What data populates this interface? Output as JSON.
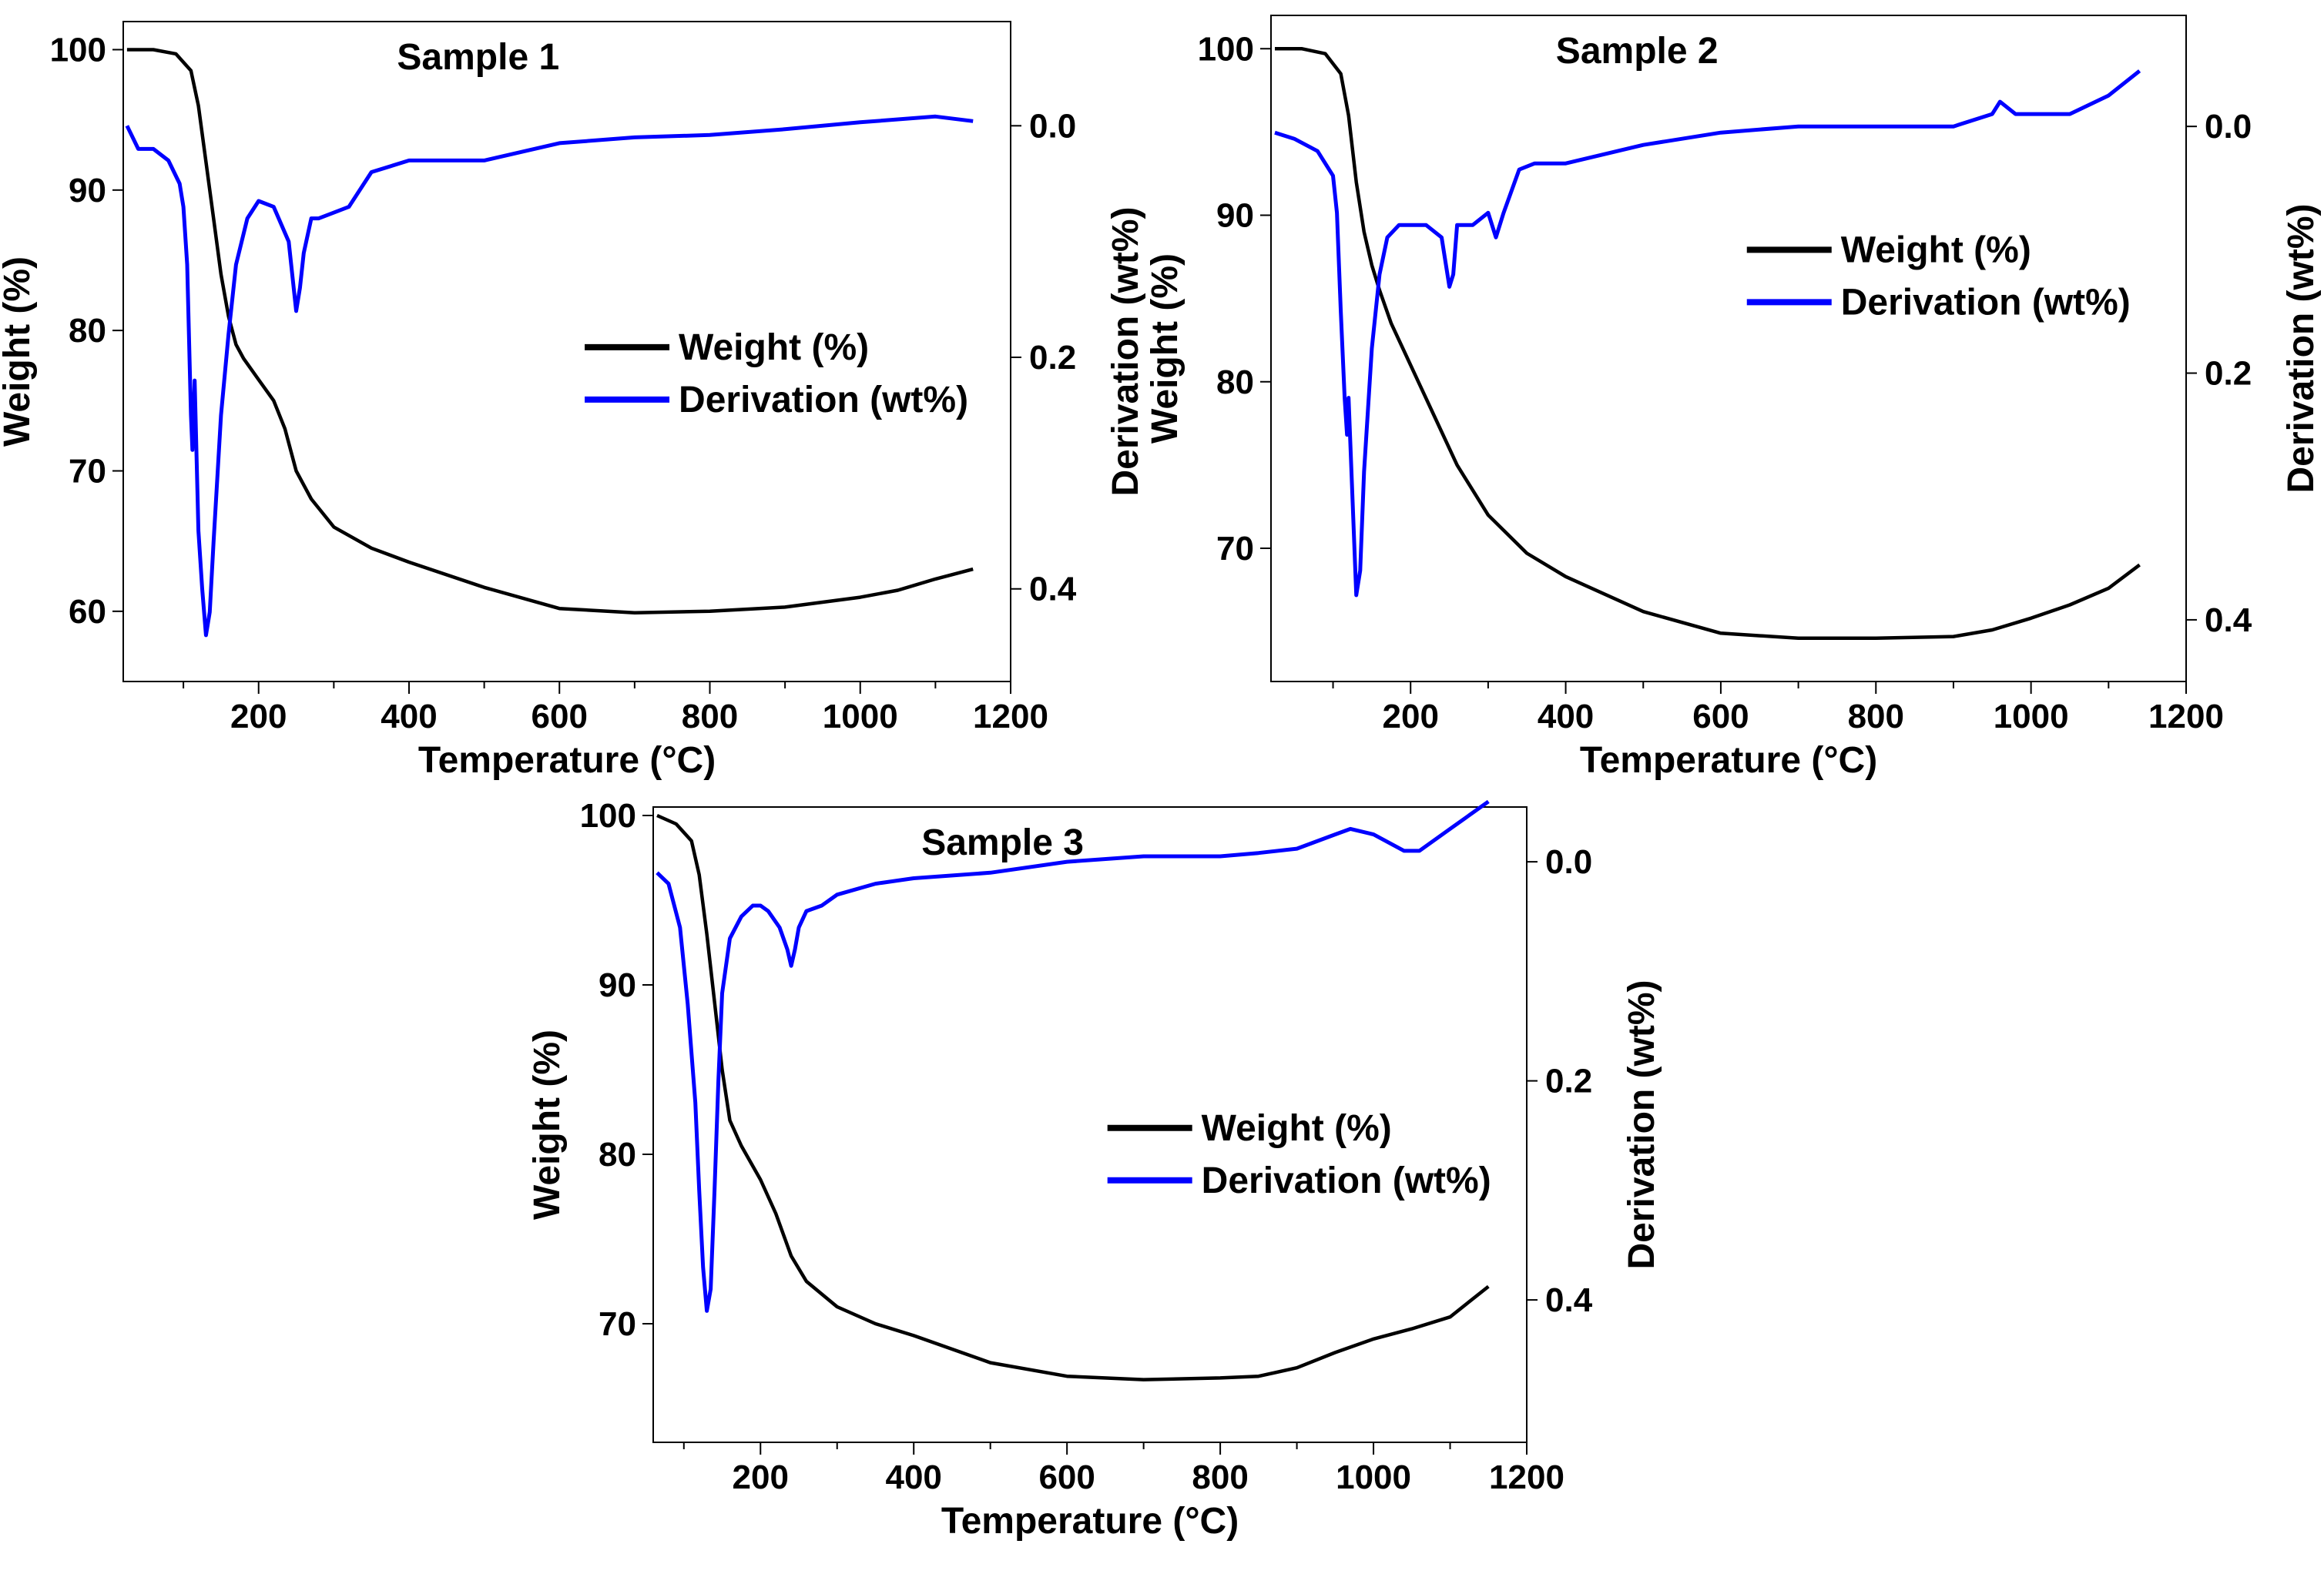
{
  "figure": {
    "panel_count": 3
  },
  "colors": {
    "weight": "#000000",
    "derivation": "#0000ff",
    "axis": "#000000",
    "background": "#ffffff"
  },
  "chart_data": [
    {
      "type": "line",
      "title": "Sample 1",
      "xlabel": "Temperature (°C)",
      "ylabel": "Weight (%)",
      "y2label": "Derivation (wt%)",
      "xlim": [
        20,
        1200
      ],
      "ylim": [
        55,
        102
      ],
      "y2lim": [
        0.48,
        -0.09
      ],
      "xticks": [
        200,
        400,
        600,
        800,
        1000,
        1200
      ],
      "yticks": [
        60,
        70,
        80,
        90,
        100
      ],
      "y2ticks": [
        0.0,
        0.2,
        0.4
      ],
      "legend": {
        "position": "middle-right",
        "entries": [
          "Weight (%)",
          "Derivation (wt%)"
        ]
      },
      "series": [
        {
          "name": "Weight (%)",
          "axis": "left",
          "color": "#000000",
          "x": [
            25,
            60,
            90,
            110,
            120,
            130,
            140,
            150,
            160,
            170,
            180,
            200,
            220,
            235,
            250,
            270,
            300,
            350,
            400,
            500,
            600,
            700,
            800,
            900,
            1000,
            1050,
            1100,
            1150
          ],
          "y": [
            100,
            100,
            99.7,
            98.5,
            96,
            92,
            88,
            84,
            81,
            79,
            78,
            76.5,
            75,
            73,
            70,
            68,
            66,
            64.5,
            63.5,
            61.7,
            60.2,
            59.9,
            60.0,
            60.3,
            61.0,
            61.5,
            62.3,
            63.0
          ]
        },
        {
          "name": "Derivation (wt%)",
          "axis": "right",
          "color": "#0000ff",
          "x": [
            25,
            40,
            60,
            80,
            95,
            100,
            105,
            110,
            112,
            115,
            120,
            125,
            130,
            135,
            140,
            150,
            160,
            170,
            185,
            200,
            220,
            240,
            250,
            255,
            260,
            270,
            280,
            300,
            320,
            350,
            400,
            450,
            500,
            600,
            700,
            800,
            900,
            1000,
            1100,
            1150
          ],
          "y": [
            0.0,
            0.02,
            0.02,
            0.03,
            0.05,
            0.07,
            0.12,
            0.25,
            0.28,
            0.22,
            0.35,
            0.4,
            0.44,
            0.42,
            0.36,
            0.25,
            0.18,
            0.12,
            0.08,
            0.065,
            0.07,
            0.1,
            0.16,
            0.14,
            0.11,
            0.08,
            0.08,
            0.075,
            0.07,
            0.04,
            0.03,
            0.03,
            0.03,
            0.015,
            0.01,
            0.008,
            0.003,
            -0.003,
            -0.008,
            -0.004
          ]
        }
      ]
    },
    {
      "type": "line",
      "title": "Sample 2",
      "xlabel": "Temperature (°C)",
      "ylabel": "Weight (%)",
      "y2label": "Derivation (wt%)",
      "xlim": [
        20,
        1200
      ],
      "ylim": [
        62,
        102
      ],
      "y2lim": [
        0.45,
        -0.09
      ],
      "xticks": [
        200,
        400,
        600,
        800,
        1000,
        1200
      ],
      "yticks": [
        70,
        80,
        90,
        100
      ],
      "y2ticks": [
        0.0,
        0.2,
        0.4
      ],
      "legend": {
        "position": "middle-right",
        "entries": [
          "Weight (%)",
          "Derivation (wt%)"
        ]
      },
      "series": [
        {
          "name": "Weight (%)",
          "axis": "left",
          "color": "#000000",
          "x": [
            25,
            60,
            90,
            110,
            120,
            130,
            140,
            150,
            160,
            175,
            190,
            210,
            230,
            260,
            300,
            350,
            400,
            500,
            600,
            700,
            800,
            900,
            950,
            1000,
            1050,
            1100,
            1140
          ],
          "y": [
            100,
            100,
            99.7,
            98.5,
            96,
            92,
            89,
            87,
            85.5,
            83.5,
            82,
            80,
            78,
            75,
            72,
            69.7,
            68.3,
            66.2,
            64.9,
            64.6,
            64.6,
            64.7,
            65.1,
            65.8,
            66.6,
            67.6,
            69.0
          ]
        },
        {
          "name": "Derivation (wt%)",
          "axis": "right",
          "color": "#0000ff",
          "x": [
            25,
            50,
            80,
            100,
            105,
            110,
            115,
            118,
            120,
            125,
            130,
            135,
            140,
            150,
            160,
            170,
            185,
            200,
            220,
            240,
            250,
            255,
            260,
            280,
            300,
            310,
            320,
            340,
            360,
            400,
            500,
            600,
            700,
            800,
            900,
            950,
            960,
            980,
            1000,
            1050,
            1100,
            1140
          ],
          "y": [
            0.005,
            0.01,
            0.02,
            0.04,
            0.07,
            0.15,
            0.22,
            0.25,
            0.22,
            0.3,
            0.38,
            0.36,
            0.28,
            0.18,
            0.12,
            0.09,
            0.08,
            0.08,
            0.08,
            0.09,
            0.13,
            0.12,
            0.08,
            0.08,
            0.07,
            0.09,
            0.07,
            0.035,
            0.03,
            0.03,
            0.015,
            0.005,
            0.0,
            0.0,
            0.0,
            -0.01,
            -0.02,
            -0.01,
            -0.01,
            -0.01,
            -0.025,
            -0.045
          ]
        }
      ]
    },
    {
      "type": "line",
      "title": "Sample 3",
      "xlabel": "Temperature (°C)",
      "ylabel": "Weight (%)",
      "y2label": "Derivation (wt%)",
      "xlim": [
        60,
        1200
      ],
      "ylim": [
        63,
        100.5
      ],
      "y2lim": [
        0.53,
        -0.05
      ],
      "xticks": [
        200,
        400,
        600,
        800,
        1000,
        1200
      ],
      "yticks": [
        70,
        80,
        90,
        100
      ],
      "y2ticks": [
        0.0,
        0.2,
        0.4
      ],
      "legend": {
        "position": "middle-right",
        "entries": [
          "Weight (%)",
          "Derivation (wt%)"
        ]
      },
      "series": [
        {
          "name": "Weight (%)",
          "axis": "left",
          "color": "#000000",
          "x": [
            65,
            90,
            110,
            120,
            130,
            140,
            150,
            160,
            175,
            200,
            220,
            240,
            260,
            300,
            350,
            400,
            500,
            600,
            700,
            800,
            850,
            900,
            950,
            1000,
            1050,
            1100,
            1150
          ],
          "y": [
            100,
            99.5,
            98.5,
            96.5,
            93,
            89,
            85,
            82,
            80.5,
            78.5,
            76.5,
            74,
            72.5,
            71,
            70,
            69.3,
            67.7,
            66.9,
            66.7,
            66.8,
            66.9,
            67.4,
            68.3,
            69.1,
            69.7,
            70.4,
            72.2
          ]
        },
        {
          "name": "Derivation (wt%)",
          "axis": "right",
          "color": "#0000ff",
          "x": [
            65,
            80,
            95,
            105,
            115,
            120,
            125,
            130,
            135,
            140,
            145,
            150,
            160,
            175,
            190,
            200,
            210,
            225,
            235,
            240,
            245,
            250,
            260,
            280,
            300,
            350,
            400,
            500,
            600,
            700,
            800,
            850,
            900,
            950,
            970,
            1000,
            1040,
            1060,
            1100,
            1150
          ],
          "y": [
            0.01,
            0.02,
            0.06,
            0.13,
            0.22,
            0.3,
            0.37,
            0.41,
            0.39,
            0.3,
            0.2,
            0.12,
            0.07,
            0.05,
            0.04,
            0.04,
            0.045,
            0.06,
            0.08,
            0.095,
            0.08,
            0.06,
            0.045,
            0.04,
            0.03,
            0.02,
            0.015,
            0.01,
            0.0,
            -0.005,
            -0.005,
            -0.008,
            -0.012,
            -0.025,
            -0.03,
            -0.025,
            -0.01,
            -0.01,
            -0.03,
            -0.055
          ]
        }
      ]
    }
  ]
}
